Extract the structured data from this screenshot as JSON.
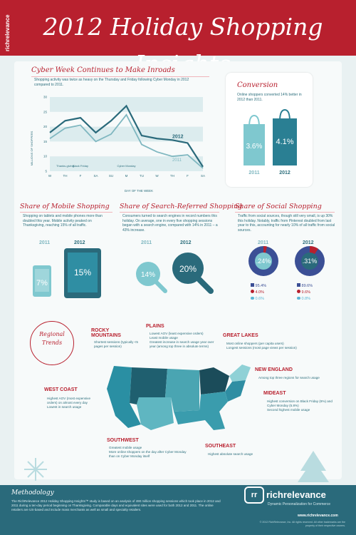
{
  "header": {
    "brand_vertical": "richrelevance",
    "title": "2012 Holiday Shopping Insights"
  },
  "cyber_week": {
    "title": "Cyber Week Continues to Make Inroads",
    "text": "Shopping activity was twice as heavy on the Thursday and Friday following Cyber Monday in 2012 compared to 2011.",
    "y_axis_label": "MILLIONS OF SHOPPERS",
    "x_axis_label": "DAY OF THE WEEK",
    "annotations": {
      "thanksgiving": "Thanks-giving",
      "black_friday": "Black Friday",
      "cyber_monday": "Cyber Monday"
    }
  },
  "chart_data": {
    "type": "line",
    "title": "Cyber Week Continues to Make Inroads",
    "xlabel": "DAY OF THE WEEK",
    "ylabel": "MILLIONS OF SHOPPERS",
    "categories": [
      "W",
      "TH",
      "F",
      "SA",
      "SU",
      "M",
      "TU",
      "W",
      "TH",
      "F",
      "SA"
    ],
    "y_ticks": [
      5,
      10,
      15,
      20,
      25,
      30
    ],
    "ylim": [
      5,
      30
    ],
    "series": [
      {
        "name": "2012",
        "values": [
          18,
          22,
          23,
          18,
          22,
          27,
          17,
          16,
          15.5,
          14.5,
          6.5
        ]
      },
      {
        "name": "2011",
        "values": [
          16,
          19.5,
          20.5,
          15,
          17.5,
          24,
          14,
          11.5,
          10,
          10.5,
          6
        ]
      }
    ],
    "colors": {
      "2012": "#2a6a7b",
      "2011": "#7fb7c0"
    }
  },
  "conversion": {
    "title": "Conversion",
    "text": "Online shoppers converted 14% better in 2012 than 2011.",
    "bags": [
      {
        "year": "2011",
        "value": "3.6%"
      },
      {
        "year": "2012",
        "value": "4.1%"
      }
    ]
  },
  "mobile": {
    "title": "Share of Mobile Shopping",
    "text": "Shopping on tablets and mobile phones more than doubled this year. Mobile activity peaked on Thanksgiving, reaching 15% of all traffic.",
    "items": [
      {
        "year": "2011",
        "value": "7%"
      },
      {
        "year": "2012",
        "value": "15%"
      }
    ]
  },
  "search": {
    "title": "Share of Search-Referred Shopping",
    "text": "Consumers turned to search engines in record numbers this holiday. On average, one in every five shopping sessions began with a search engine, compared with 14% in 2011 – a 43% increase.",
    "items": [
      {
        "year": "2011",
        "value": "14%"
      },
      {
        "year": "2012",
        "value": "20%"
      }
    ]
  },
  "social": {
    "title": "Share of Social Shopping",
    "text": "Traffic from social sources, though still very small, is up 30% this holiday. Notably, traffic from Pinterest doubled from last year to this, accounting for nearly 10% of all traffic from social sources.",
    "items": [
      {
        "year": "2011",
        "value": ".24%",
        "facebook": "95.4%",
        "pinterest": "4.0%",
        "twitter": "0.6%"
      },
      {
        "year": "2012",
        "value": ".31%",
        "facebook": "89.6%",
        "pinterest": "9.6%",
        "twitter": "0.8%"
      }
    ]
  },
  "regional": {
    "title": "Regional Trends",
    "regions": {
      "rocky": {
        "name": "ROCKY MOUNTAINS",
        "text": "Shortest sessions (typically <5 pages per session)"
      },
      "plains": {
        "name": "PLAINS",
        "text": "Lowest AOV (least expensive orders)\nLeast mobile usage\nGreatest increase in search usage year over year (among top three in absolute terms)"
      },
      "great_lakes": {
        "name": "GREAT LAKES",
        "text": "Most online shoppers (per capita users)\nLongest sessions (most page views per session)"
      },
      "new_england": {
        "name": "NEW ENGLAND",
        "text": "Among top three regions for search usage"
      },
      "west": {
        "name": "WEST COAST",
        "text": "Highest AOV (most expensive orders) on almost every day\nLowest in search usage"
      },
      "mideast": {
        "name": "MIDEAST",
        "text": "Highest conversion on Black Friday (6%) and Cyber Monday (5.8%)\nSecond highest mobile usage"
      },
      "southwest": {
        "name": "SOUTHWEST",
        "text": "Greatest mobile usage\nMore online shoppers on the day after Cyber Monday than on Cyber Monday itself"
      },
      "southeast": {
        "name": "SOUTHEAST",
        "text": "Highest absolute search usage"
      }
    }
  },
  "footer": {
    "methodology_title": "Methodology",
    "methodology_text": "The RichRelevance 2012 Holiday Shopping Insights™ study is based on an analysis of 490 million shopping sessions which took place in 2012 and 2011 during a ten-day period beginning on Thanksgiving. Comparable days and equivalent sites were used for both 2012 and 2011. The online retailers are US-based and include mass merchants as well as small and specialty retailers.",
    "logo": "richrelevance",
    "tagline": "Dynamic Personalization for Commerce",
    "url": "www.richrelevance.com",
    "copyright": "© 2012 RichRelevance, Inc. All rights reserved. All other trademarks are the property of their respective owners."
  }
}
